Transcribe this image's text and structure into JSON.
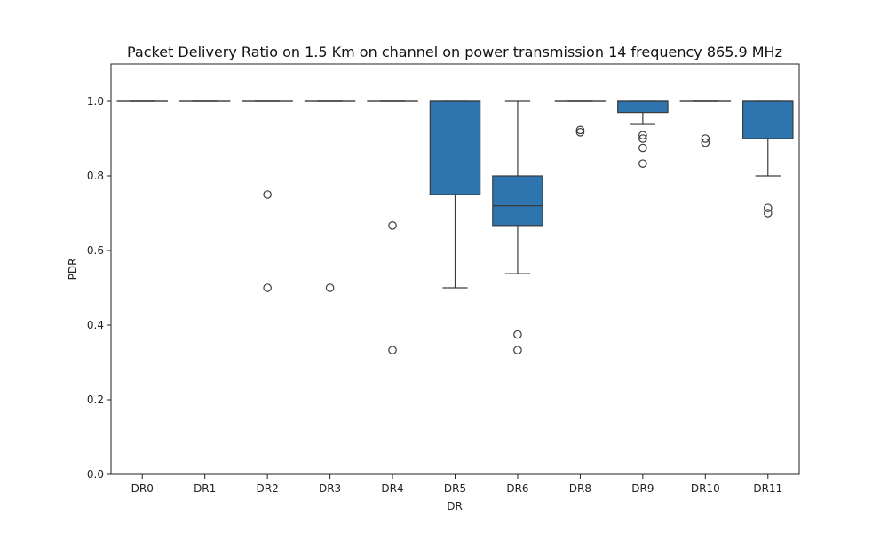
{
  "chart_data": {
    "type": "box",
    "title": "Packet Delivery Ratio on 1.5 Km on channel on power transmission 14 frequency 865.9 MHz",
    "xlabel": "DR",
    "ylabel": "PDR",
    "ylim": [
      0,
      1.1
    ],
    "yticks": [
      "0.0",
      "0.2",
      "0.4",
      "0.6",
      "0.8",
      "1.0"
    ],
    "grid": false,
    "color": "#2e75b0",
    "categories": [
      "DR0",
      "DR1",
      "DR2",
      "DR3",
      "DR4",
      "DR5",
      "DR6",
      "DR8",
      "DR9",
      "DR10",
      "DR11"
    ],
    "boxes": [
      {
        "q1": 1.0,
        "median": 1.0,
        "q3": 1.0,
        "whisker_low": 1.0,
        "whisker_high": 1.0,
        "outliers": []
      },
      {
        "q1": 1.0,
        "median": 1.0,
        "q3": 1.0,
        "whisker_low": 1.0,
        "whisker_high": 1.0,
        "outliers": []
      },
      {
        "q1": 1.0,
        "median": 1.0,
        "q3": 1.0,
        "whisker_low": 1.0,
        "whisker_high": 1.0,
        "outliers": [
          0.75,
          0.5
        ]
      },
      {
        "q1": 1.0,
        "median": 1.0,
        "q3": 1.0,
        "whisker_low": 1.0,
        "whisker_high": 1.0,
        "outliers": [
          0.5
        ]
      },
      {
        "q1": 1.0,
        "median": 1.0,
        "q3": 1.0,
        "whisker_low": 1.0,
        "whisker_high": 1.0,
        "outliers": [
          0.667,
          0.333
        ]
      },
      {
        "q1": 0.75,
        "median": 1.0,
        "q3": 1.0,
        "whisker_low": 0.5,
        "whisker_high": 1.0,
        "outliers": []
      },
      {
        "q1": 0.667,
        "median": 0.72,
        "q3": 0.8,
        "whisker_low": 0.538,
        "whisker_high": 1.0,
        "outliers": [
          0.375,
          0.333
        ]
      },
      {
        "q1": 1.0,
        "median": 1.0,
        "q3": 1.0,
        "whisker_low": 1.0,
        "whisker_high": 1.0,
        "outliers": [
          0.923,
          0.917
        ]
      },
      {
        "q1": 0.97,
        "median": 1.0,
        "q3": 1.0,
        "whisker_low": 0.938,
        "whisker_high": 1.0,
        "outliers": [
          0.909,
          0.9,
          0.875,
          0.833
        ]
      },
      {
        "q1": 1.0,
        "median": 1.0,
        "q3": 1.0,
        "whisker_low": 1.0,
        "whisker_high": 1.0,
        "outliers": [
          0.9,
          0.889
        ]
      },
      {
        "q1": 0.9,
        "median": 1.0,
        "q3": 1.0,
        "whisker_low": 0.8,
        "whisker_high": 1.0,
        "outliers": [
          0.714,
          0.7
        ]
      }
    ]
  }
}
